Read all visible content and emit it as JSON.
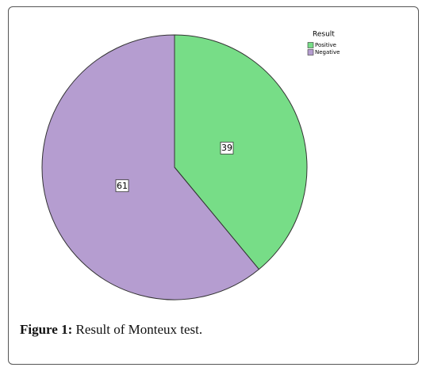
{
  "chart_data": {
    "type": "pie",
    "legend_title": "Result",
    "categories": [
      "Positive",
      "Negative"
    ],
    "values": [
      39,
      61
    ],
    "colors": [
      "#77dd87",
      "#b59dd0"
    ],
    "caption": {
      "label": "Figure 1:",
      "text": "Result of Monteux test."
    }
  }
}
